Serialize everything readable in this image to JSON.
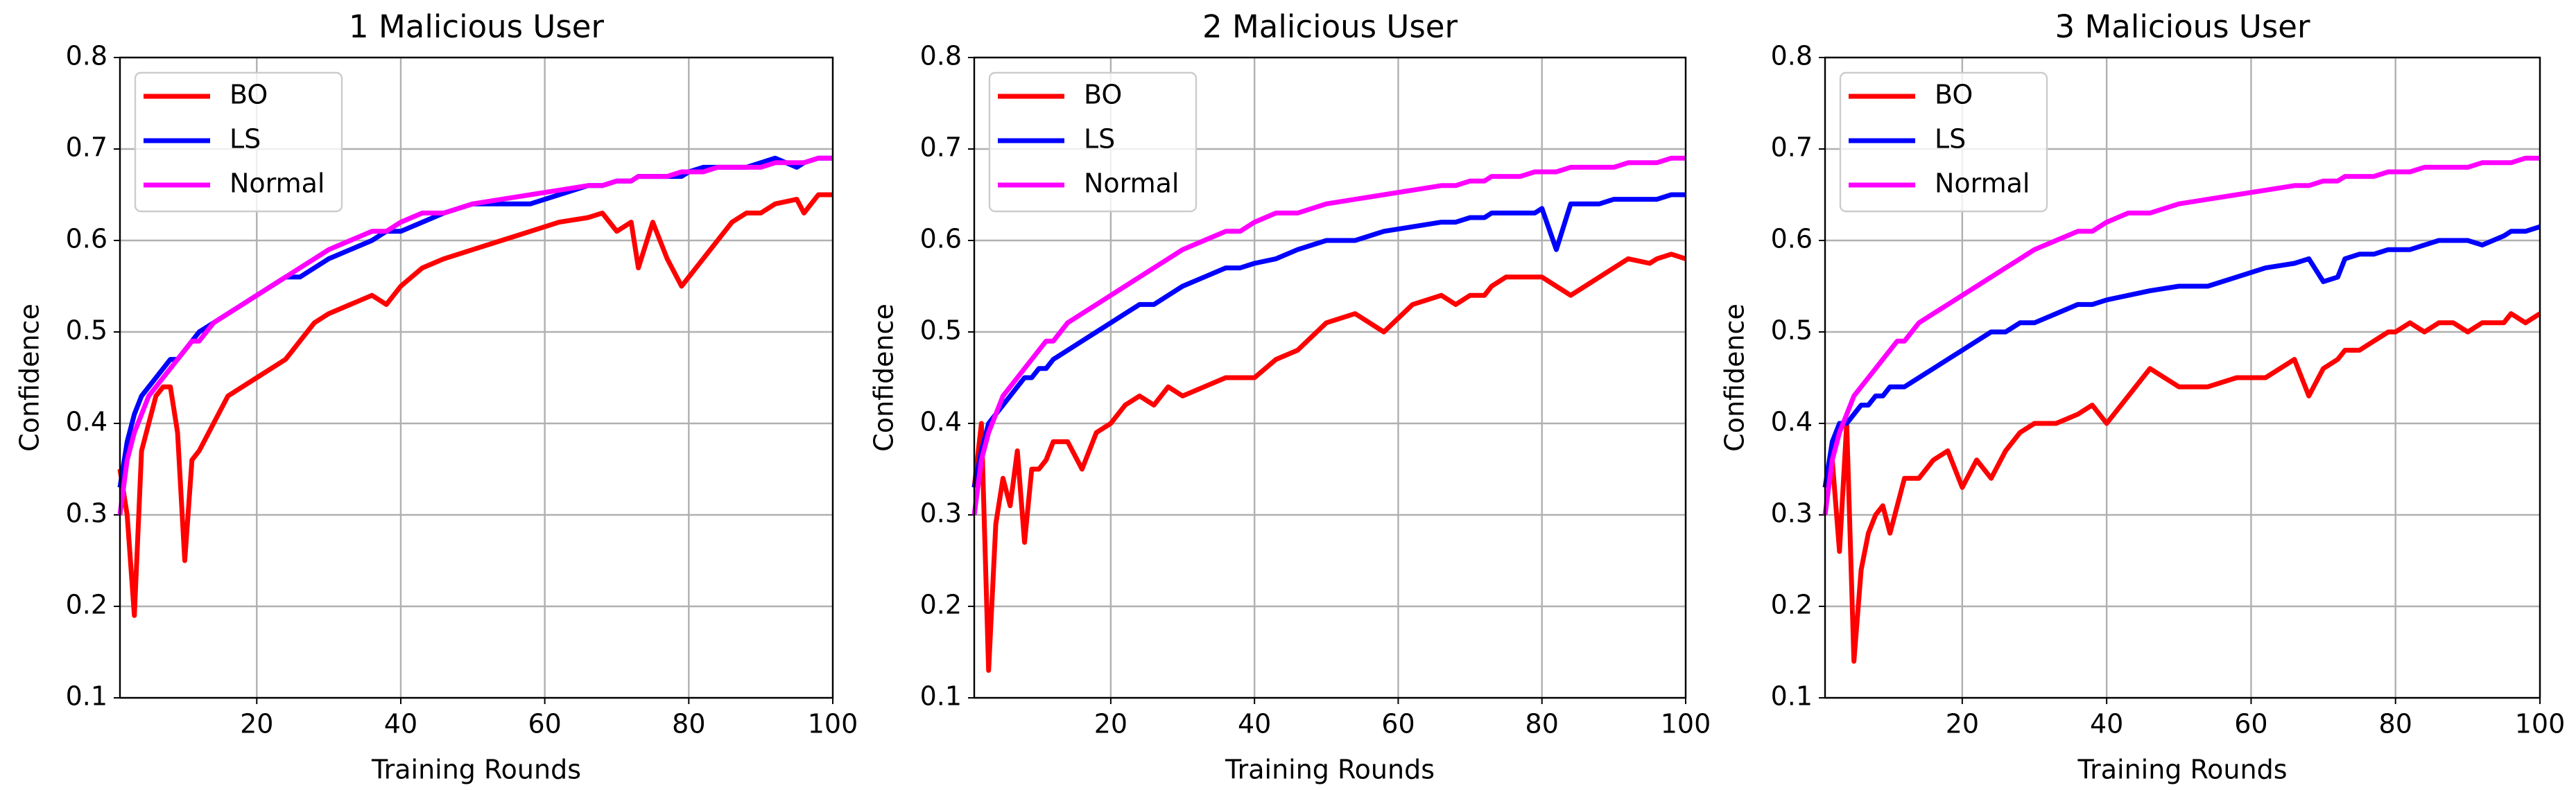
{
  "chart_data": [
    {
      "type": "line",
      "title": "1 Malicious User",
      "xlabel": "Training Rounds",
      "ylabel": "Confidence",
      "x": [
        1,
        2,
        3,
        4,
        5,
        6,
        7,
        8,
        9,
        10,
        11,
        12,
        14,
        16,
        18,
        20,
        22,
        24,
        26,
        28,
        30,
        33,
        36,
        38,
        40,
        43,
        46,
        50,
        54,
        58,
        62,
        66,
        68,
        70,
        72,
        73,
        75,
        77,
        79,
        80,
        82,
        84,
        86,
        88,
        90,
        92,
        95,
        96,
        98,
        100
      ],
      "series": [
        {
          "name": "BO",
          "color": "#ff0000",
          "values": [
            0.35,
            0.3,
            0.19,
            0.37,
            0.4,
            0.43,
            0.44,
            0.44,
            0.39,
            0.25,
            0.36,
            0.37,
            0.4,
            0.43,
            0.44,
            0.45,
            0.46,
            0.47,
            0.49,
            0.51,
            0.52,
            0.53,
            0.54,
            0.53,
            0.55,
            0.57,
            0.58,
            0.59,
            0.6,
            0.61,
            0.62,
            0.625,
            0.63,
            0.61,
            0.62,
            0.57,
            0.62,
            0.58,
            0.55,
            0.56,
            0.58,
            0.6,
            0.62,
            0.63,
            0.63,
            0.64,
            0.645,
            0.63,
            0.65,
            0.65
          ]
        },
        {
          "name": "LS",
          "color": "#0000ff",
          "values": [
            0.33,
            0.38,
            0.41,
            0.43,
            0.44,
            0.45,
            0.46,
            0.47,
            0.47,
            0.48,
            0.49,
            0.5,
            0.51,
            0.52,
            0.53,
            0.54,
            0.55,
            0.56,
            0.56,
            0.57,
            0.58,
            0.59,
            0.6,
            0.61,
            0.61,
            0.62,
            0.63,
            0.64,
            0.64,
            0.64,
            0.65,
            0.66,
            0.66,
            0.665,
            0.665,
            0.67,
            0.67,
            0.67,
            0.67,
            0.675,
            0.68,
            0.68,
            0.68,
            0.68,
            0.685,
            0.69,
            0.68,
            0.685,
            0.69,
            0.69
          ]
        },
        {
          "name": "Normal",
          "color": "#ff00ff",
          "values": [
            0.3,
            0.36,
            0.39,
            0.41,
            0.43,
            0.44,
            0.45,
            0.46,
            0.47,
            0.48,
            0.49,
            0.49,
            0.51,
            0.52,
            0.53,
            0.54,
            0.55,
            0.56,
            0.57,
            0.58,
            0.59,
            0.6,
            0.61,
            0.61,
            0.62,
            0.63,
            0.63,
            0.64,
            0.645,
            0.65,
            0.655,
            0.66,
            0.66,
            0.665,
            0.665,
            0.67,
            0.67,
            0.67,
            0.675,
            0.675,
            0.675,
            0.68,
            0.68,
            0.68,
            0.68,
            0.685,
            0.685,
            0.685,
            0.69,
            0.69
          ]
        }
      ],
      "xlim": [
        1,
        100
      ],
      "ylim": [
        0.1,
        0.8
      ],
      "xticks": [
        20,
        40,
        60,
        80,
        100
      ],
      "yticks": [
        0.1,
        0.2,
        0.3,
        0.4,
        0.5,
        0.6,
        0.7,
        0.8
      ],
      "grid": true,
      "legend": "upper-left"
    },
    {
      "type": "line",
      "title": "2 Malicious User",
      "xlabel": "Training Rounds",
      "ylabel": "Confidence",
      "x": [
        1,
        2,
        3,
        4,
        5,
        6,
        7,
        8,
        9,
        10,
        11,
        12,
        14,
        16,
        18,
        20,
        22,
        24,
        26,
        28,
        30,
        33,
        36,
        38,
        40,
        43,
        46,
        50,
        54,
        58,
        62,
        66,
        68,
        70,
        72,
        73,
        75,
        77,
        79,
        80,
        82,
        84,
        86,
        88,
        90,
        92,
        95,
        96,
        98,
        100
      ],
      "series": [
        {
          "name": "BO",
          "color": "#ff0000",
          "values": [
            0.33,
            0.4,
            0.13,
            0.29,
            0.34,
            0.31,
            0.37,
            0.27,
            0.35,
            0.35,
            0.36,
            0.38,
            0.38,
            0.35,
            0.39,
            0.4,
            0.42,
            0.43,
            0.42,
            0.44,
            0.43,
            0.44,
            0.45,
            0.45,
            0.45,
            0.47,
            0.48,
            0.51,
            0.52,
            0.5,
            0.53,
            0.54,
            0.53,
            0.54,
            0.54,
            0.55,
            0.56,
            0.56,
            0.56,
            0.56,
            0.55,
            0.54,
            0.55,
            0.56,
            0.57,
            0.58,
            0.575,
            0.58,
            0.585,
            0.58
          ]
        },
        {
          "name": "LS",
          "color": "#0000ff",
          "values": [
            0.33,
            0.37,
            0.4,
            0.41,
            0.42,
            0.43,
            0.44,
            0.45,
            0.45,
            0.46,
            0.46,
            0.47,
            0.48,
            0.49,
            0.5,
            0.51,
            0.52,
            0.53,
            0.53,
            0.54,
            0.55,
            0.56,
            0.57,
            0.57,
            0.575,
            0.58,
            0.59,
            0.6,
            0.6,
            0.61,
            0.615,
            0.62,
            0.62,
            0.625,
            0.625,
            0.63,
            0.63,
            0.63,
            0.63,
            0.635,
            0.59,
            0.64,
            0.64,
            0.64,
            0.645,
            0.645,
            0.645,
            0.645,
            0.65,
            0.65
          ]
        },
        {
          "name": "Normal",
          "color": "#ff00ff",
          "values": [
            0.3,
            0.36,
            0.39,
            0.41,
            0.43,
            0.44,
            0.45,
            0.46,
            0.47,
            0.48,
            0.49,
            0.49,
            0.51,
            0.52,
            0.53,
            0.54,
            0.55,
            0.56,
            0.57,
            0.58,
            0.59,
            0.6,
            0.61,
            0.61,
            0.62,
            0.63,
            0.63,
            0.64,
            0.645,
            0.65,
            0.655,
            0.66,
            0.66,
            0.665,
            0.665,
            0.67,
            0.67,
            0.67,
            0.675,
            0.675,
            0.675,
            0.68,
            0.68,
            0.68,
            0.68,
            0.685,
            0.685,
            0.685,
            0.69,
            0.69
          ]
        }
      ],
      "xlim": [
        1,
        100
      ],
      "ylim": [
        0.1,
        0.8
      ],
      "xticks": [
        20,
        40,
        60,
        80,
        100
      ],
      "yticks": [
        0.1,
        0.2,
        0.3,
        0.4,
        0.5,
        0.6,
        0.7,
        0.8
      ],
      "grid": true,
      "legend": "upper-left"
    },
    {
      "type": "line",
      "title": "3 Malicious User",
      "xlabel": "Training Rounds",
      "ylabel": "Confidence",
      "x": [
        1,
        2,
        3,
        4,
        5,
        6,
        7,
        8,
        9,
        10,
        11,
        12,
        14,
        16,
        18,
        20,
        22,
        24,
        26,
        28,
        30,
        33,
        36,
        38,
        40,
        43,
        46,
        50,
        54,
        58,
        62,
        66,
        68,
        70,
        72,
        73,
        75,
        77,
        79,
        80,
        82,
        84,
        86,
        88,
        90,
        92,
        95,
        96,
        98,
        100
      ],
      "series": [
        {
          "name": "BO",
          "color": "#ff0000",
          "values": [
            0.33,
            0.36,
            0.26,
            0.4,
            0.14,
            0.24,
            0.28,
            0.3,
            0.31,
            0.28,
            0.31,
            0.34,
            0.34,
            0.36,
            0.37,
            0.33,
            0.36,
            0.34,
            0.37,
            0.39,
            0.4,
            0.4,
            0.41,
            0.42,
            0.4,
            0.43,
            0.46,
            0.44,
            0.44,
            0.45,
            0.45,
            0.47,
            0.43,
            0.46,
            0.47,
            0.48,
            0.48,
            0.49,
            0.5,
            0.5,
            0.51,
            0.5,
            0.51,
            0.51,
            0.5,
            0.51,
            0.51,
            0.52,
            0.51,
            0.52
          ]
        },
        {
          "name": "LS",
          "color": "#0000ff",
          "values": [
            0.33,
            0.38,
            0.4,
            0.4,
            0.41,
            0.42,
            0.42,
            0.43,
            0.43,
            0.44,
            0.44,
            0.44,
            0.45,
            0.46,
            0.47,
            0.48,
            0.49,
            0.5,
            0.5,
            0.51,
            0.51,
            0.52,
            0.53,
            0.53,
            0.535,
            0.54,
            0.545,
            0.55,
            0.55,
            0.56,
            0.57,
            0.575,
            0.58,
            0.555,
            0.56,
            0.58,
            0.585,
            0.585,
            0.59,
            0.59,
            0.59,
            0.595,
            0.6,
            0.6,
            0.6,
            0.595,
            0.605,
            0.61,
            0.61,
            0.615
          ]
        },
        {
          "name": "Normal",
          "color": "#ff00ff",
          "values": [
            0.3,
            0.36,
            0.39,
            0.41,
            0.43,
            0.44,
            0.45,
            0.46,
            0.47,
            0.48,
            0.49,
            0.49,
            0.51,
            0.52,
            0.53,
            0.54,
            0.55,
            0.56,
            0.57,
            0.58,
            0.59,
            0.6,
            0.61,
            0.61,
            0.62,
            0.63,
            0.63,
            0.64,
            0.645,
            0.65,
            0.655,
            0.66,
            0.66,
            0.665,
            0.665,
            0.67,
            0.67,
            0.67,
            0.675,
            0.675,
            0.675,
            0.68,
            0.68,
            0.68,
            0.68,
            0.685,
            0.685,
            0.685,
            0.69,
            0.69
          ]
        }
      ],
      "xlim": [
        1,
        100
      ],
      "ylim": [
        0.1,
        0.8
      ],
      "xticks": [
        20,
        40,
        60,
        80,
        100
      ],
      "yticks": [
        0.1,
        0.2,
        0.3,
        0.4,
        0.5,
        0.6,
        0.7,
        0.8
      ],
      "grid": true,
      "legend": "upper-left"
    }
  ]
}
